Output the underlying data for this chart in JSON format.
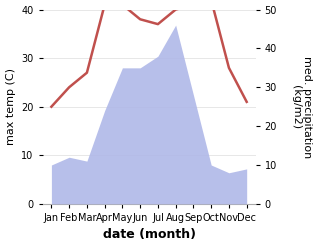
{
  "months": [
    "Jan",
    "Feb",
    "Mar",
    "Apr",
    "May",
    "Jun",
    "Jul",
    "Aug",
    "Sep",
    "Oct",
    "Nov",
    "Dec"
  ],
  "x": [
    1,
    2,
    3,
    4,
    5,
    6,
    7,
    8,
    9,
    10,
    11,
    12
  ],
  "temperature": [
    20,
    24,
    27,
    41,
    41,
    38,
    37,
    40,
    41,
    42,
    28,
    21
  ],
  "precipitation": [
    10,
    12,
    11,
    24,
    35,
    35,
    38,
    46,
    28,
    10,
    8,
    9
  ],
  "temp_color": "#c0504d",
  "precip_fill_color": "#b0b8e8",
  "ylabel_left": "max temp (C)",
  "ylabel_right": "med. precipitation\n(kg/m2)",
  "xlabel": "date (month)",
  "ylim_left": [
    0,
    40
  ],
  "ylim_right": [
    0,
    50
  ],
  "yticks_left": [
    0,
    10,
    20,
    30,
    40
  ],
  "yticks_right": [
    0,
    10,
    20,
    30,
    40,
    50
  ],
  "background_color": "#ffffff",
  "temp_linewidth": 1.8,
  "xlabel_fontsize": 9,
  "ylabel_fontsize": 8,
  "tick_fontsize": 7
}
